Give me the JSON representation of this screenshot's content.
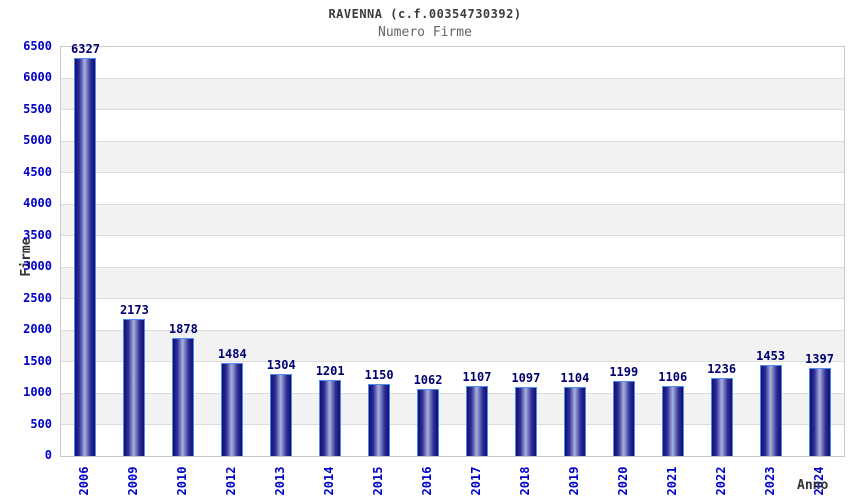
{
  "chart_data": {
    "type": "bar",
    "title": "RAVENNA (c.f.00354730392)",
    "subtitle": "Numero Firme",
    "xlabel": "Anno",
    "ylabel": "Firme",
    "categories": [
      "2006",
      "2009",
      "2010",
      "2012",
      "2013",
      "2014",
      "2015",
      "2016",
      "2017",
      "2018",
      "2019",
      "2020",
      "2021",
      "2022",
      "2023",
      "2024"
    ],
    "values": [
      6327,
      2173,
      1878,
      1484,
      1304,
      1201,
      1150,
      1062,
      1107,
      1097,
      1104,
      1199,
      1106,
      1236,
      1453,
      1397
    ],
    "ylim": [
      0,
      6500
    ],
    "ytick_step": 500,
    "grid": "horizontal gridlines with alternating white/gray bands",
    "legend": "none",
    "colors": {
      "bar_dark": "#10106e",
      "bar_mid": "#2e2e96",
      "bar_light": "#a9b1dd",
      "bar_border": "#4f8bf0",
      "axis_tick_label": "#0000cc",
      "value_label": "#000070",
      "band_gray": "#f2f2f2",
      "band_white": "#ffffff",
      "grid_line": "#dcdcdc",
      "plot_border": "#c9c9c9",
      "title_color": "#3c3c3c",
      "subtitle_color": "#666666",
      "axis_title_color": "#333333"
    }
  }
}
